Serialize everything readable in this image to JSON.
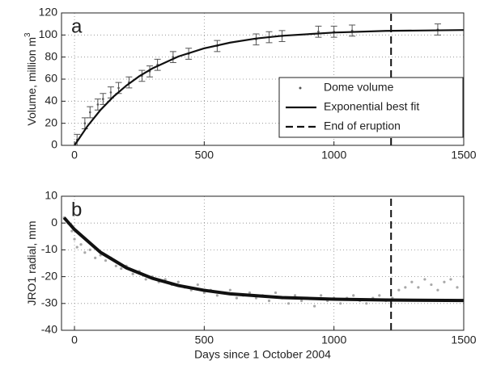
{
  "chart_data": [
    {
      "type": "line",
      "annotation": "a",
      "ylabel": "Volume, million m",
      "ylabel_sup": "3",
      "xlim": [
        -50,
        1500
      ],
      "xticks": [
        0,
        500,
        1000,
        1500
      ],
      "ylim": [
        0,
        120
      ],
      "yticks": [
        0,
        20,
        40,
        60,
        80,
        100,
        120
      ],
      "grid": true,
      "legend": "right",
      "series": [
        {
          "name": "Dome volume",
          "style": "errorbar",
          "color": "#555555",
          "x": [
            10,
            40,
            60,
            90,
            110,
            140,
            170,
            210,
            260,
            290,
            320,
            380,
            440,
            550,
            700,
            750,
            800,
            940,
            1000,
            1070,
            1400
          ],
          "values": [
            5,
            20,
            30,
            37,
            42,
            48,
            52,
            57,
            63,
            67,
            73,
            80,
            83,
            90,
            96,
            98,
            99,
            103,
            103,
            104,
            105
          ],
          "errors": [
            5,
            5,
            5,
            5,
            5,
            5,
            5,
            5,
            5,
            5,
            5,
            5,
            5,
            5,
            5,
            5,
            5,
            5,
            5,
            5,
            5
          ]
        },
        {
          "name": "Exponential best fit",
          "style": "line",
          "color": "#111111",
          "x": [
            0,
            50,
            100,
            150,
            200,
            250,
            300,
            400,
            500,
            600,
            700,
            800,
            1000,
            1200,
            1500
          ],
          "values": [
            0,
            17.4,
            32.0,
            44.1,
            54.2,
            62.7,
            69.7,
            80.5,
            87.9,
            93.1,
            96.8,
            99.3,
            102.2,
            103.7,
            104.5
          ]
        },
        {
          "name": "End of eruption",
          "style": "dashed",
          "color": "#111111",
          "x": [
            1220,
            1220
          ],
          "values": [
            0,
            120
          ]
        }
      ]
    },
    {
      "type": "line",
      "annotation": "b",
      "ylabel": "JRO1 radial, mm",
      "xlabel": "Days since 1 October 2004",
      "xlim": [
        -50,
        1500
      ],
      "xticks": [
        0,
        500,
        1000,
        1500
      ],
      "ylim": [
        -40,
        10
      ],
      "yticks": [
        -40,
        -30,
        -20,
        -10,
        0,
        10
      ],
      "grid": true,
      "series": [
        {
          "style": "points",
          "color": "#a8a8a8",
          "x": [
            -40,
            -25,
            -10,
            0,
            10,
            25,
            40,
            60,
            80,
            100,
            120,
            140,
            160,
            180,
            200,
            225,
            250,
            275,
            300,
            325,
            350,
            375,
            400,
            425,
            450,
            475,
            500,
            525,
            550,
            575,
            600,
            625,
            650,
            675,
            700,
            725,
            750,
            775,
            800,
            825,
            850,
            875,
            900,
            925,
            950,
            975,
            1000,
            1025,
            1050,
            1075,
            1100,
            1125,
            1150,
            1175,
            1200,
            1225,
            1250,
            1275,
            1300,
            1325,
            1350,
            1375,
            1400,
            1425,
            1450,
            1475,
            1500
          ],
          "values": [
            2,
            0,
            -3,
            -6,
            -9,
            -8,
            -11,
            -10,
            -13,
            -12,
            -14,
            -13,
            -16,
            -17,
            -16,
            -19,
            -18,
            -21,
            -20,
            -22,
            -21,
            -23,
            -22,
            -24,
            -25,
            -23,
            -26,
            -25,
            -27,
            -26,
            -25,
            -28,
            -27,
            -26,
            -28,
            -27,
            -29,
            -26,
            -28,
            -30,
            -27,
            -29,
            -28,
            -31,
            -27,
            -29,
            -28,
            -30,
            -28,
            -27,
            -29,
            -30,
            -28,
            -27,
            -29,
            -28,
            -25,
            -24,
            -22,
            -24,
            -21,
            -23,
            -25,
            -22,
            -21,
            -24,
            -20
          ]
        },
        {
          "style": "line",
          "width": 4,
          "color": "#111111",
          "x": [
            -40,
            0,
            100,
            200,
            300,
            400,
            500,
            600,
            800,
            1000,
            1200,
            1500
          ],
          "values": [
            2,
            -2.4,
            -10.9,
            -16.7,
            -20.6,
            -23.3,
            -25.1,
            -26.4,
            -27.8,
            -28.4,
            -28.7,
            -28.9
          ]
        },
        {
          "style": "dashed",
          "color": "#111111",
          "x": [
            1220,
            1220
          ],
          "values": [
            -40,
            10
          ]
        }
      ]
    }
  ]
}
